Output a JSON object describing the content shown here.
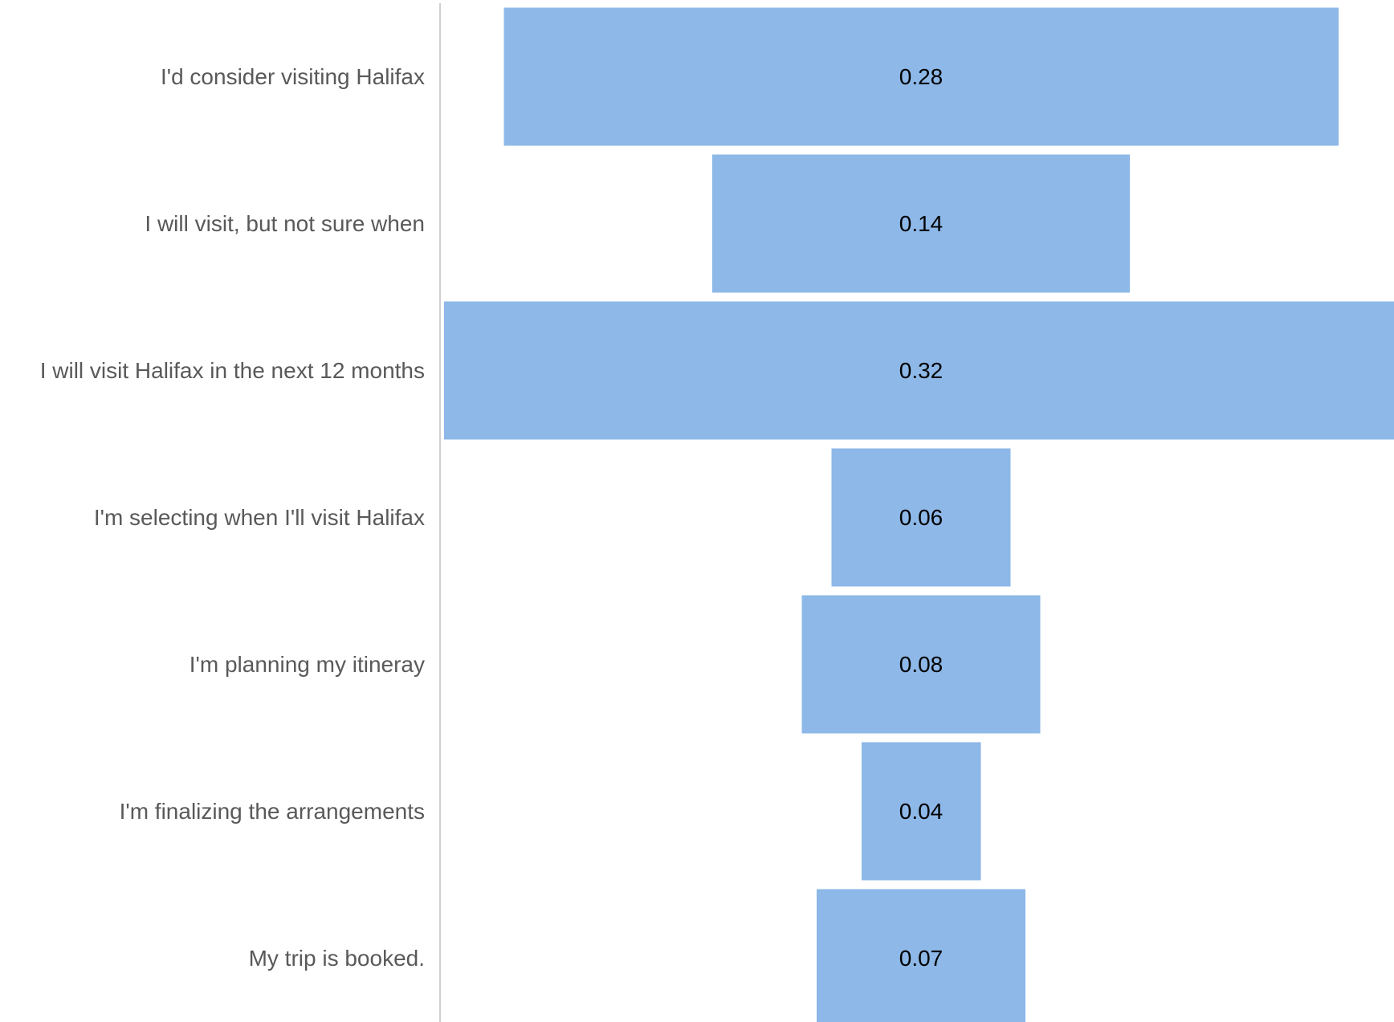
{
  "chart_data": {
    "type": "bar",
    "orientation": "horizontal",
    "layout": "funnel-centered",
    "categories": [
      "I'd consider visiting Halifax",
      "I will visit, but not sure when",
      "I will visit Halifax in the next 12 months",
      "I'm selecting when I'll visit Halifax",
      "I'm planning my itineray",
      "I'm finalizing the arrangements",
      "My trip is booked."
    ],
    "values": [
      0.28,
      0.14,
      0.32,
      0.06,
      0.08,
      0.04,
      0.07
    ],
    "labels": [
      "0.28",
      "0.14",
      "0.32",
      "0.06",
      "0.08",
      "0.04",
      "0.07"
    ],
    "title": "",
    "xlabel": "",
    "ylabel": "",
    "grid": false,
    "legend": "none",
    "colors": {
      "bar": "#8db8e8",
      "axis": "#d0d0d0",
      "category_text": "#595959",
      "value_text": "#000000"
    }
  }
}
